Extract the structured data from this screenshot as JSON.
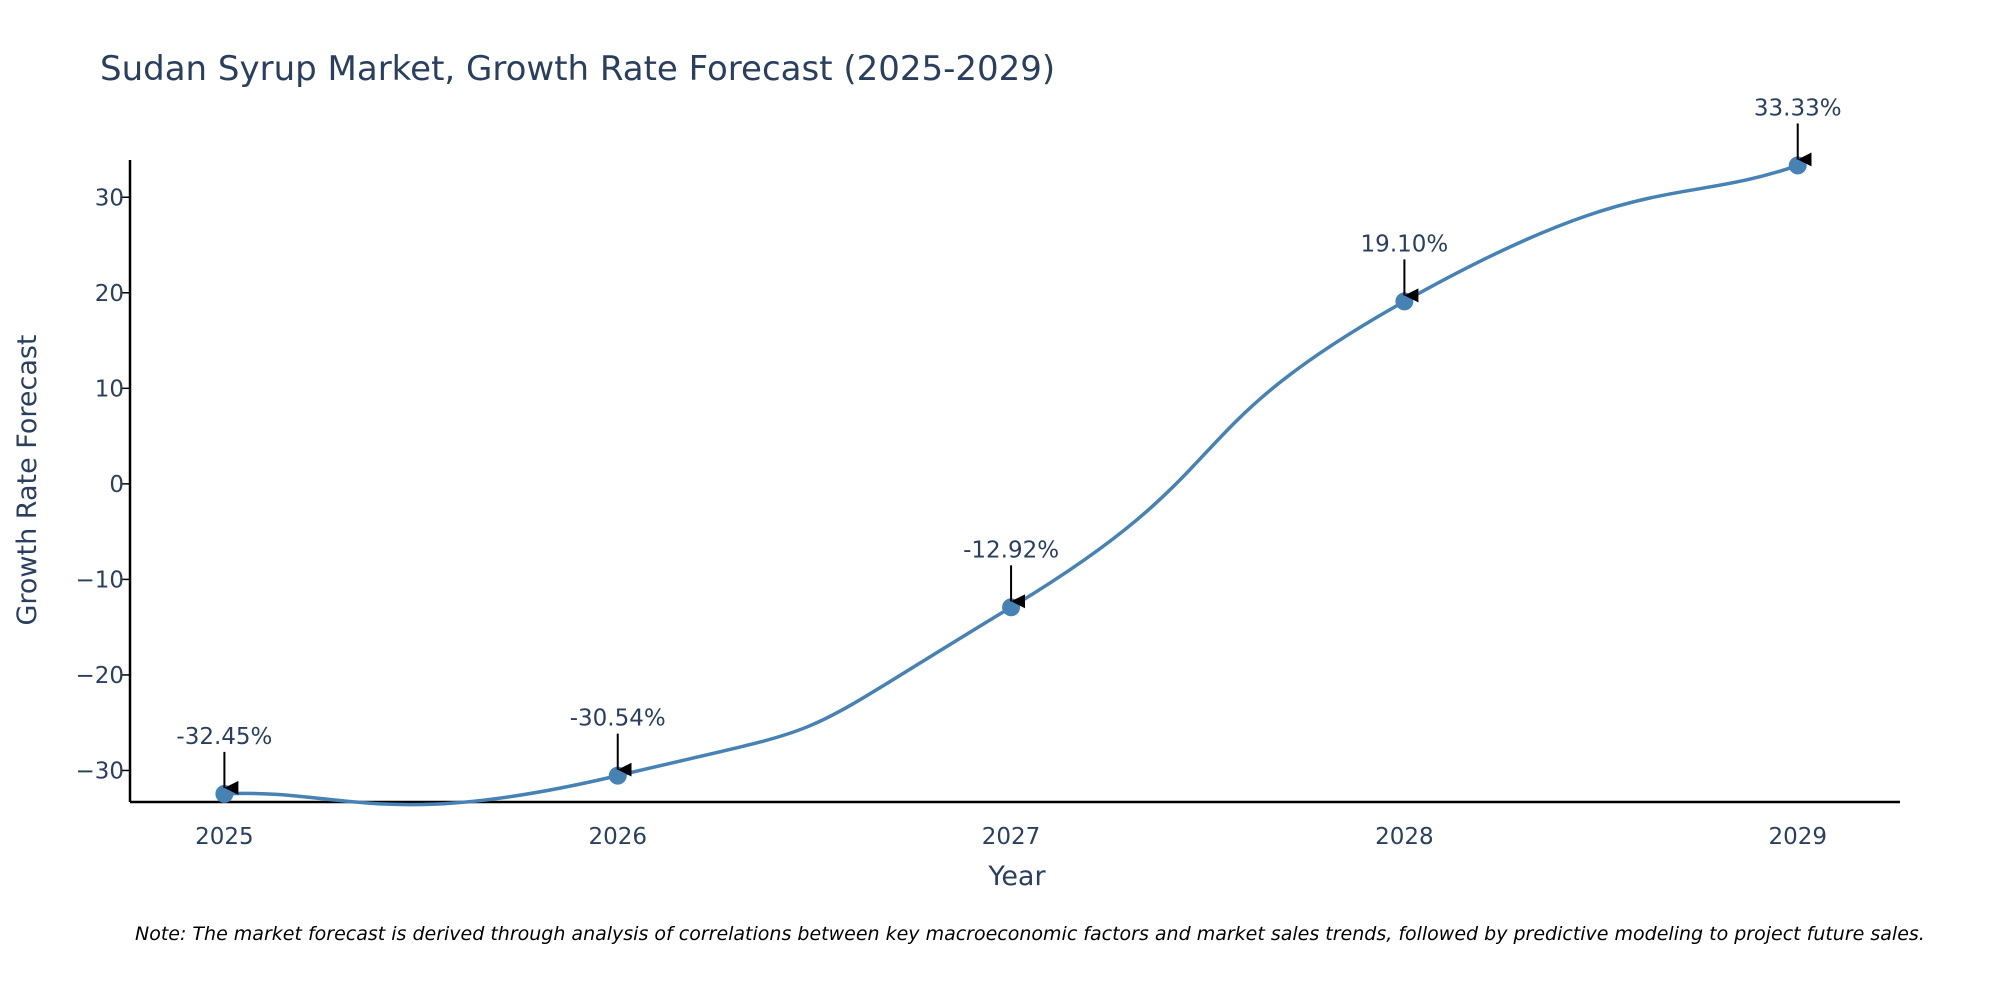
{
  "chart_data": {
    "type": "line",
    "title": "Sudan Syrup Market, Growth Rate Forecast (2025-2029)",
    "xlabel": "Year",
    "ylabel": "Growth Rate Forecast",
    "categories": [
      "2025",
      "2026",
      "2027",
      "2028",
      "2029"
    ],
    "values": [
      -32.45,
      -30.54,
      -12.92,
      19.1,
      33.33
    ],
    "data_labels": [
      "-32.45%",
      "-30.54%",
      "-12.92%",
      "19.10%",
      "33.33%"
    ],
    "y_ticks": [
      -30,
      -20,
      -10,
      0,
      10,
      20,
      30
    ],
    "y_tick_labels": [
      "−30",
      "−20",
      "−10",
      "0",
      "10",
      "20",
      "30"
    ],
    "xlim": [
      2024.76,
      2029.26
    ],
    "ylim": [
      -33.3,
      33.9
    ],
    "grid": false,
    "line_color": "#4682b4",
    "marker_color": "#4682b4",
    "note": "Note: The market forecast is derived through analysis of correlations between key macroeconomic factors and market sales trends, followed by predictive modeling to project future sales."
  }
}
